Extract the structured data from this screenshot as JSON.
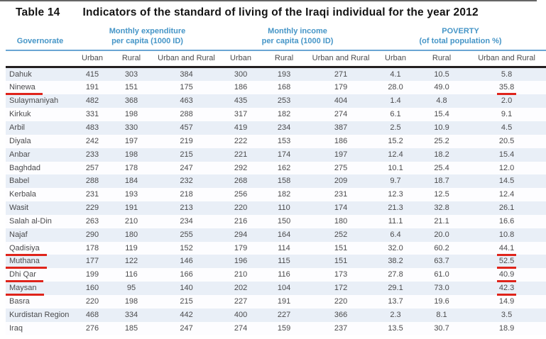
{
  "title": {
    "label": "Table 14",
    "text": "Indicators of the standard of living of the Iraqi individual for the year 2012"
  },
  "colors": {
    "header_blue": "#4595c7",
    "underline_red": "#df241b",
    "row_stripe_blue": "#e9eff7",
    "header_rule_dark": "#231f20"
  },
  "table": {
    "governorate_header": "Governorate",
    "group_headers": [
      {
        "line1": "Monthly expenditure",
        "line2": "per capita (1000 ID)"
      },
      {
        "line1": "Monthly income",
        "line2": "per capita (1000 ID)"
      },
      {
        "line1": "POVERTY",
        "line2": "(of total population %)"
      }
    ],
    "sub_headers": [
      "Urban",
      "Rural",
      "Urban and Rural",
      "Urban",
      "Rural",
      "Urban and Rural",
      "Urban",
      "Rural",
      "Urban and Rural"
    ],
    "rows": [
      {
        "name": "Dahuk",
        "values": [
          "415",
          "303",
          "384",
          "300",
          "193",
          "271",
          "4.1",
          "10.5",
          "5.8"
        ],
        "name_underlined": false,
        "value_underlined": false
      },
      {
        "name": "Ninewa",
        "values": [
          "191",
          "151",
          "175",
          "186",
          "168",
          "179",
          "28.0",
          "49.0",
          "35.8"
        ],
        "name_underlined": true,
        "value_underlined": true
      },
      {
        "name": "Sulaymaniyah",
        "values": [
          "482",
          "368",
          "463",
          "435",
          "253",
          "404",
          "1.4",
          "4.8",
          "2.0"
        ],
        "name_underlined": false,
        "value_underlined": false
      },
      {
        "name": "Kirkuk",
        "values": [
          "331",
          "198",
          "288",
          "317",
          "182",
          "274",
          "6.1",
          "15.4",
          "9.1"
        ],
        "name_underlined": false,
        "value_underlined": false
      },
      {
        "name": "Arbil",
        "values": [
          "483",
          "330",
          "457",
          "419",
          "234",
          "387",
          "2.5",
          "10.9",
          "4.5"
        ],
        "name_underlined": false,
        "value_underlined": false
      },
      {
        "name": "Diyala",
        "values": [
          "242",
          "197",
          "219",
          "222",
          "153",
          "186",
          "15.2",
          "25.2",
          "20.5"
        ],
        "name_underlined": false,
        "value_underlined": false
      },
      {
        "name": "Anbar",
        "values": [
          "233",
          "198",
          "215",
          "221",
          "174",
          "197",
          "12.4",
          "18.2",
          "15.4"
        ],
        "name_underlined": false,
        "value_underlined": false
      },
      {
        "name": "Baghdad",
        "values": [
          "257",
          "178",
          "247",
          "292",
          "162",
          "275",
          "10.1",
          "25.4",
          "12.0"
        ],
        "name_underlined": false,
        "value_underlined": false
      },
      {
        "name": "Babel",
        "values": [
          "288",
          "184",
          "232",
          "268",
          "158",
          "209",
          "9.7",
          "18.7",
          "14.5"
        ],
        "name_underlined": false,
        "value_underlined": false
      },
      {
        "name": "Kerbala",
        "values": [
          "231",
          "193",
          "218",
          "256",
          "182",
          "231",
          "12.3",
          "12.5",
          "12.4"
        ],
        "name_underlined": false,
        "value_underlined": false
      },
      {
        "name": "Wasit",
        "values": [
          "229",
          "191",
          "213",
          "220",
          "110",
          "174",
          "21.3",
          "32.8",
          "26.1"
        ],
        "name_underlined": false,
        "value_underlined": false
      },
      {
        "name": "Salah al-Din",
        "values": [
          "263",
          "210",
          "234",
          "216",
          "150",
          "180",
          "11.1",
          "21.1",
          "16.6"
        ],
        "name_underlined": false,
        "value_underlined": false
      },
      {
        "name": "Najaf",
        "values": [
          "290",
          "180",
          "255",
          "294",
          "164",
          "252",
          "6.4",
          "20.0",
          "10.8"
        ],
        "name_underlined": false,
        "value_underlined": false
      },
      {
        "name": "Qadisiya",
        "values": [
          "178",
          "119",
          "152",
          "179",
          "114",
          "151",
          "32.0",
          "60.2",
          "44.1"
        ],
        "name_underlined": true,
        "value_underlined": true
      },
      {
        "name": "Muthana",
        "values": [
          "177",
          "122",
          "146",
          "196",
          "115",
          "151",
          "38.2",
          "63.7",
          "52.5"
        ],
        "name_underlined": true,
        "value_underlined": true
      },
      {
        "name": "Dhi Qar",
        "values": [
          "199",
          "116",
          "166",
          "210",
          "116",
          "173",
          "27.8",
          "61.0",
          "40.9"
        ],
        "name_underlined": true,
        "value_underlined": true
      },
      {
        "name": "Maysan",
        "values": [
          "160",
          "95",
          "140",
          "202",
          "104",
          "172",
          "29.1",
          "73.0",
          "42.3"
        ],
        "name_underlined": true,
        "value_underlined": true
      },
      {
        "name": "Basra",
        "values": [
          "220",
          "198",
          "215",
          "227",
          "191",
          "220",
          "13.7",
          "19.6",
          "14.9"
        ],
        "name_underlined": false,
        "value_underlined": false
      },
      {
        "name": "Kurdistan Region",
        "values": [
          "468",
          "334",
          "442",
          "400",
          "227",
          "366",
          "2.3",
          "8.1",
          "3.5"
        ],
        "name_underlined": false,
        "value_underlined": false
      },
      {
        "name": "Iraq",
        "values": [
          "276",
          "185",
          "247",
          "274",
          "159",
          "237",
          "13.5",
          "30.7",
          "18.9"
        ],
        "name_underlined": false,
        "value_underlined": false
      }
    ]
  }
}
